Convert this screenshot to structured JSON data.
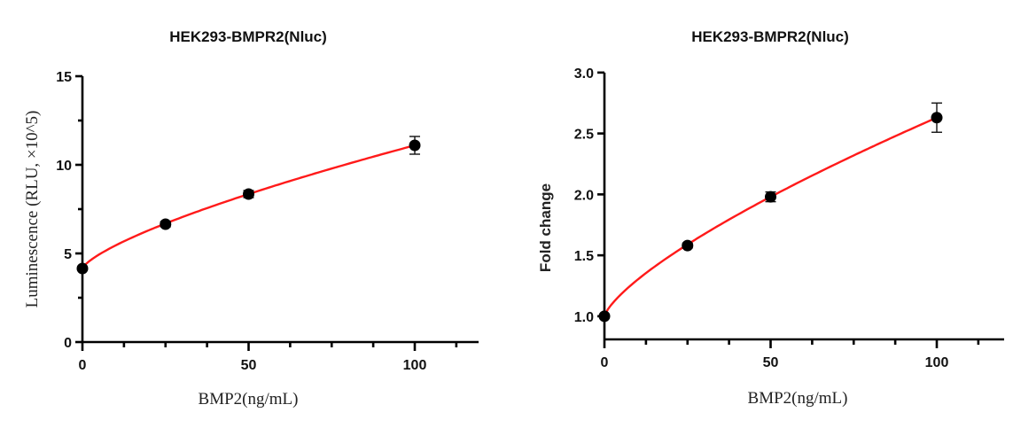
{
  "chart_data": [
    {
      "type": "scatter",
      "title": "HEK293-BMPR2(Nluc)",
      "xlabel": "BMP2(ng/mL)",
      "ylabel": "Luminescence (RLU, ×10^5)",
      "xlim": [
        0,
        120
      ],
      "ylim": [
        0,
        15
      ],
      "x_ticks": [
        0,
        50,
        100
      ],
      "y_ticks": [
        0,
        5,
        10,
        15
      ],
      "x_tick_labels": [
        "0",
        "50",
        "100"
      ],
      "y_tick_labels": [
        "0",
        "5",
        "10",
        "15"
      ],
      "grid": false,
      "legend": null,
      "fit_line": {
        "color": "#ff1a1a",
        "shape": "concave increasing curve"
      },
      "marker_color": "#000000",
      "series": [
        {
          "name": "HEK293-BMPR2(Nluc)",
          "x": [
            0,
            25,
            50,
            100
          ],
          "y": [
            4.15,
            6.65,
            8.35,
            11.1
          ],
          "error": [
            0.1,
            0.15,
            0.2,
            0.5
          ]
        }
      ]
    },
    {
      "type": "scatter",
      "title": "HEK293-BMPR2(Nluc)",
      "xlabel": "BMP2(ng/mL)",
      "ylabel": "Fold change",
      "xlim": [
        0,
        120
      ],
      "ylim": [
        0.8,
        3.0
      ],
      "x_ticks": [
        0,
        50,
        100
      ],
      "y_ticks": [
        1.0,
        1.5,
        2.0,
        2.5,
        3.0
      ],
      "x_tick_labels": [
        "0",
        "50",
        "100"
      ],
      "y_tick_labels": [
        "1.0",
        "1.5",
        "2.0",
        "2.5",
        "3.0"
      ],
      "grid": false,
      "legend": null,
      "fit_line": {
        "color": "#ff1a1a",
        "shape": "concave increasing curve"
      },
      "marker_color": "#000000",
      "series": [
        {
          "name": "HEK293-BMPR2(Nluc)",
          "x": [
            0,
            25,
            50,
            100
          ],
          "y": [
            1.0,
            1.58,
            1.98,
            2.63
          ],
          "error": [
            0.0,
            0.02,
            0.04,
            0.12
          ]
        }
      ]
    }
  ],
  "left_chart": {
    "title": "HEK293-BMPR2(Nluc)",
    "xlabel": "BMP2(ng/mL)",
    "ylabel": "Luminescence (RLU, ×10^5)",
    "x_tick_labels": [
      "0",
      "50",
      "100"
    ],
    "y_tick_labels": [
      "0",
      "5",
      "10",
      "15"
    ]
  },
  "right_chart": {
    "title": "HEK293-BMPR2(Nluc)",
    "xlabel": "BMP2(ng/mL)",
    "ylabel": "Fold change",
    "x_tick_labels": [
      "0",
      "50",
      "100"
    ],
    "y_tick_labels": [
      "1.0",
      "1.5",
      "2.0",
      "2.5",
      "3.0"
    ]
  }
}
